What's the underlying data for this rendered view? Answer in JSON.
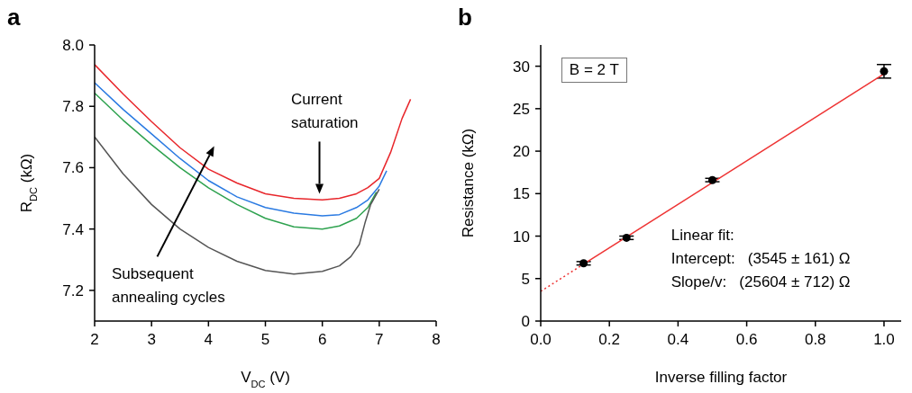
{
  "chart_data": [
    {
      "type": "line",
      "title": "a",
      "xlabel": "V$_{DC}$ (V)",
      "ylabel": "R$_{DC}$ (kΩ)",
      "xlim": [
        2,
        8
      ],
      "xticks": [
        2,
        3,
        4,
        5,
        6,
        7,
        8
      ],
      "ylim": [
        7.1,
        8.0
      ],
      "yticks": [
        7.2,
        7.4,
        7.6,
        7.8,
        {
          "value": 8,
          "label": "8.0"
        }
      ],
      "annotations": [
        "Current saturation",
        "Subsequent annealing cycles"
      ],
      "series": [
        {
          "color": "#e8262b",
          "x": [
            2,
            2.5,
            3,
            3.5,
            4,
            4.5,
            5,
            5.5,
            6,
            6.3,
            6.6,
            6.8,
            7,
            7.2,
            7.4,
            7.55
          ],
          "values": [
            7.936,
            7.84,
            7.75,
            7.665,
            7.595,
            7.55,
            7.515,
            7.5,
            7.495,
            7.5,
            7.515,
            7.535,
            7.565,
            7.65,
            7.76,
            7.823
          ]
        },
        {
          "color": "#2a7ae2",
          "x": [
            2,
            2.5,
            3,
            3.5,
            4,
            4.5,
            5,
            5.5,
            6,
            6.3,
            6.6,
            6.8,
            7,
            7.13
          ],
          "values": [
            7.877,
            7.79,
            7.71,
            7.63,
            7.558,
            7.505,
            7.47,
            7.452,
            7.443,
            7.447,
            7.47,
            7.495,
            7.54,
            7.59
          ]
        },
        {
          "color": "#2ea24f",
          "x": [
            2,
            2.5,
            3,
            3.5,
            4,
            4.5,
            5,
            5.5,
            6,
            6.3,
            6.6,
            6.8,
            6.95
          ],
          "values": [
            7.843,
            7.755,
            7.675,
            7.6,
            7.534,
            7.48,
            7.435,
            7.407,
            7.4,
            7.41,
            7.435,
            7.47,
            7.52
          ]
        },
        {
          "color": "#555555",
          "x": [
            2,
            2.5,
            3,
            3.5,
            4,
            4.5,
            5,
            5.5,
            6,
            6.3,
            6.5,
            6.65,
            6.75,
            6.85,
            7
          ],
          "values": [
            7.7,
            7.58,
            7.48,
            7.4,
            7.34,
            7.295,
            7.265,
            7.253,
            7.262,
            7.28,
            7.31,
            7.35,
            7.42,
            7.48,
            7.53
          ]
        }
      ]
    },
    {
      "type": "scatter",
      "title": "b",
      "xlabel": "Inverse filling factor",
      "ylabel": "Resistance (kΩ)",
      "xlim": [
        0,
        1.05
      ],
      "xticks": [
        {
          "value": 0,
          "label": "0.0"
        },
        0.2,
        0.4,
        0.6,
        0.8,
        {
          "value": 1,
          "label": "1.0"
        }
      ],
      "ylim": [
        0,
        32.5
      ],
      "yticks": [
        0,
        5,
        10,
        15,
        20,
        25,
        30
      ],
      "annotations": [
        "B = 2 T",
        "Linear fit:",
        "Intercept:   (3545 ± 161) Ω",
        "Slope/v:   (25604 ± 712) Ω"
      ],
      "x": [
        0.125,
        0.25,
        0.5,
        1
      ],
      "series": [
        {
          "color": "#000000",
          "marker": "circle",
          "values": [
            6.8,
            9.8,
            16.6,
            29.4
          ],
          "errors": [
            0.2,
            0.2,
            0.2,
            0.8
          ]
        },
        {
          "type": "line",
          "color": "#ee3333",
          "line_style": "solid",
          "x": [
            0.125,
            1
          ],
          "values": [
            6.7,
            29.1
          ]
        },
        {
          "type": "line",
          "color": "#ee3333",
          "line_style": "dotted",
          "x": [
            0,
            0.125
          ],
          "values": [
            3.5,
            6.7
          ]
        }
      ]
    }
  ]
}
